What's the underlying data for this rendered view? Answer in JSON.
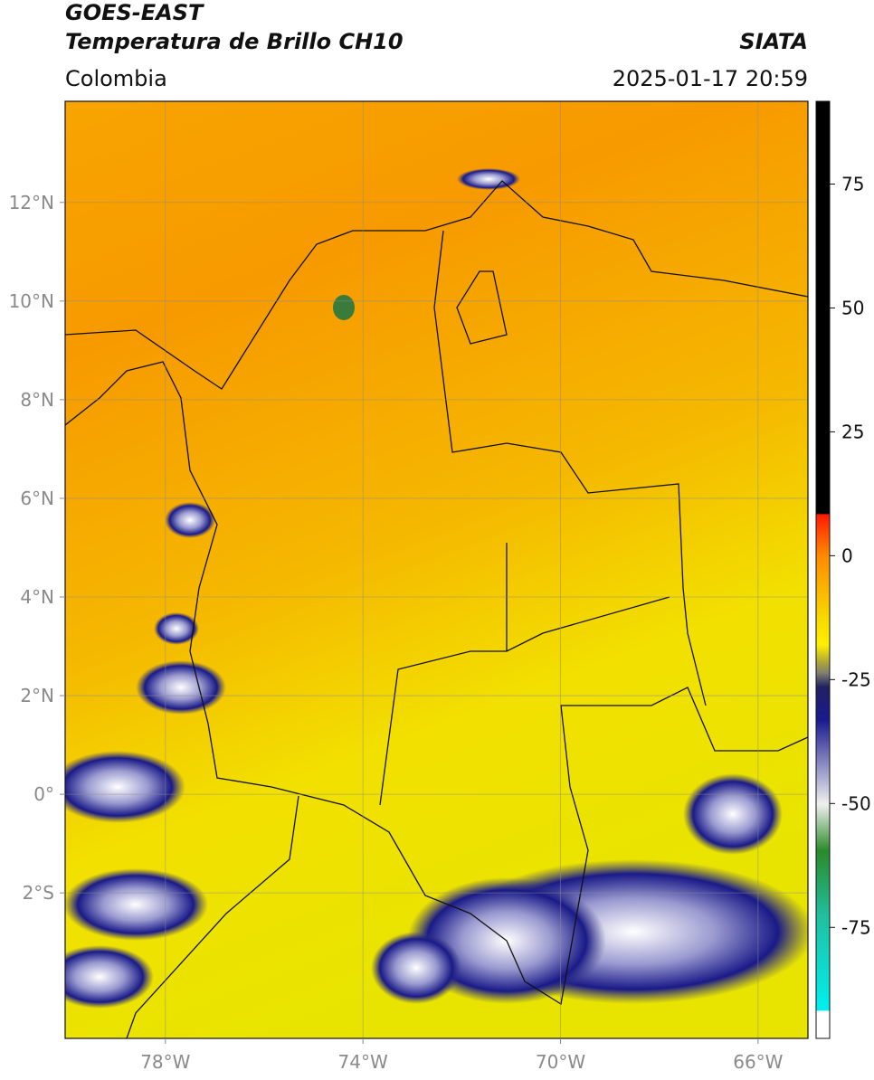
{
  "map": {
    "title": "GOES-EAST",
    "product": "Temperatura de Brillo CH10",
    "source": "SIATA",
    "region": "Colombia",
    "datetime": "2025-01-17 20:59",
    "lonlim": [
      -80.03,
      -64.99
    ],
    "latlim": [
      -4.95,
      14.05
    ],
    "lon_ticks": [
      {
        "value": -78,
        "label": "78°W"
      },
      {
        "value": -74,
        "label": "74°W"
      },
      {
        "value": -70,
        "label": "70°W"
      },
      {
        "value": -66,
        "label": "66°W"
      }
    ],
    "lat_ticks": [
      {
        "value": 12,
        "label": "12°N"
      },
      {
        "value": 10,
        "label": "10°N"
      },
      {
        "value": 8,
        "label": "8°N"
      },
      {
        "value": 6,
        "label": "6°N"
      },
      {
        "value": 4,
        "label": "4°N"
      },
      {
        "value": 2,
        "label": "2°N"
      },
      {
        "value": 0,
        "label": "0°"
      },
      {
        "value": -2,
        "label": "2°S"
      }
    ],
    "grid": true
  },
  "colorbar": {
    "lim": [
      -97.4,
      91.7
    ],
    "ticks": [
      75,
      50,
      25,
      0,
      -25,
      -50,
      -75
    ]
  }
}
